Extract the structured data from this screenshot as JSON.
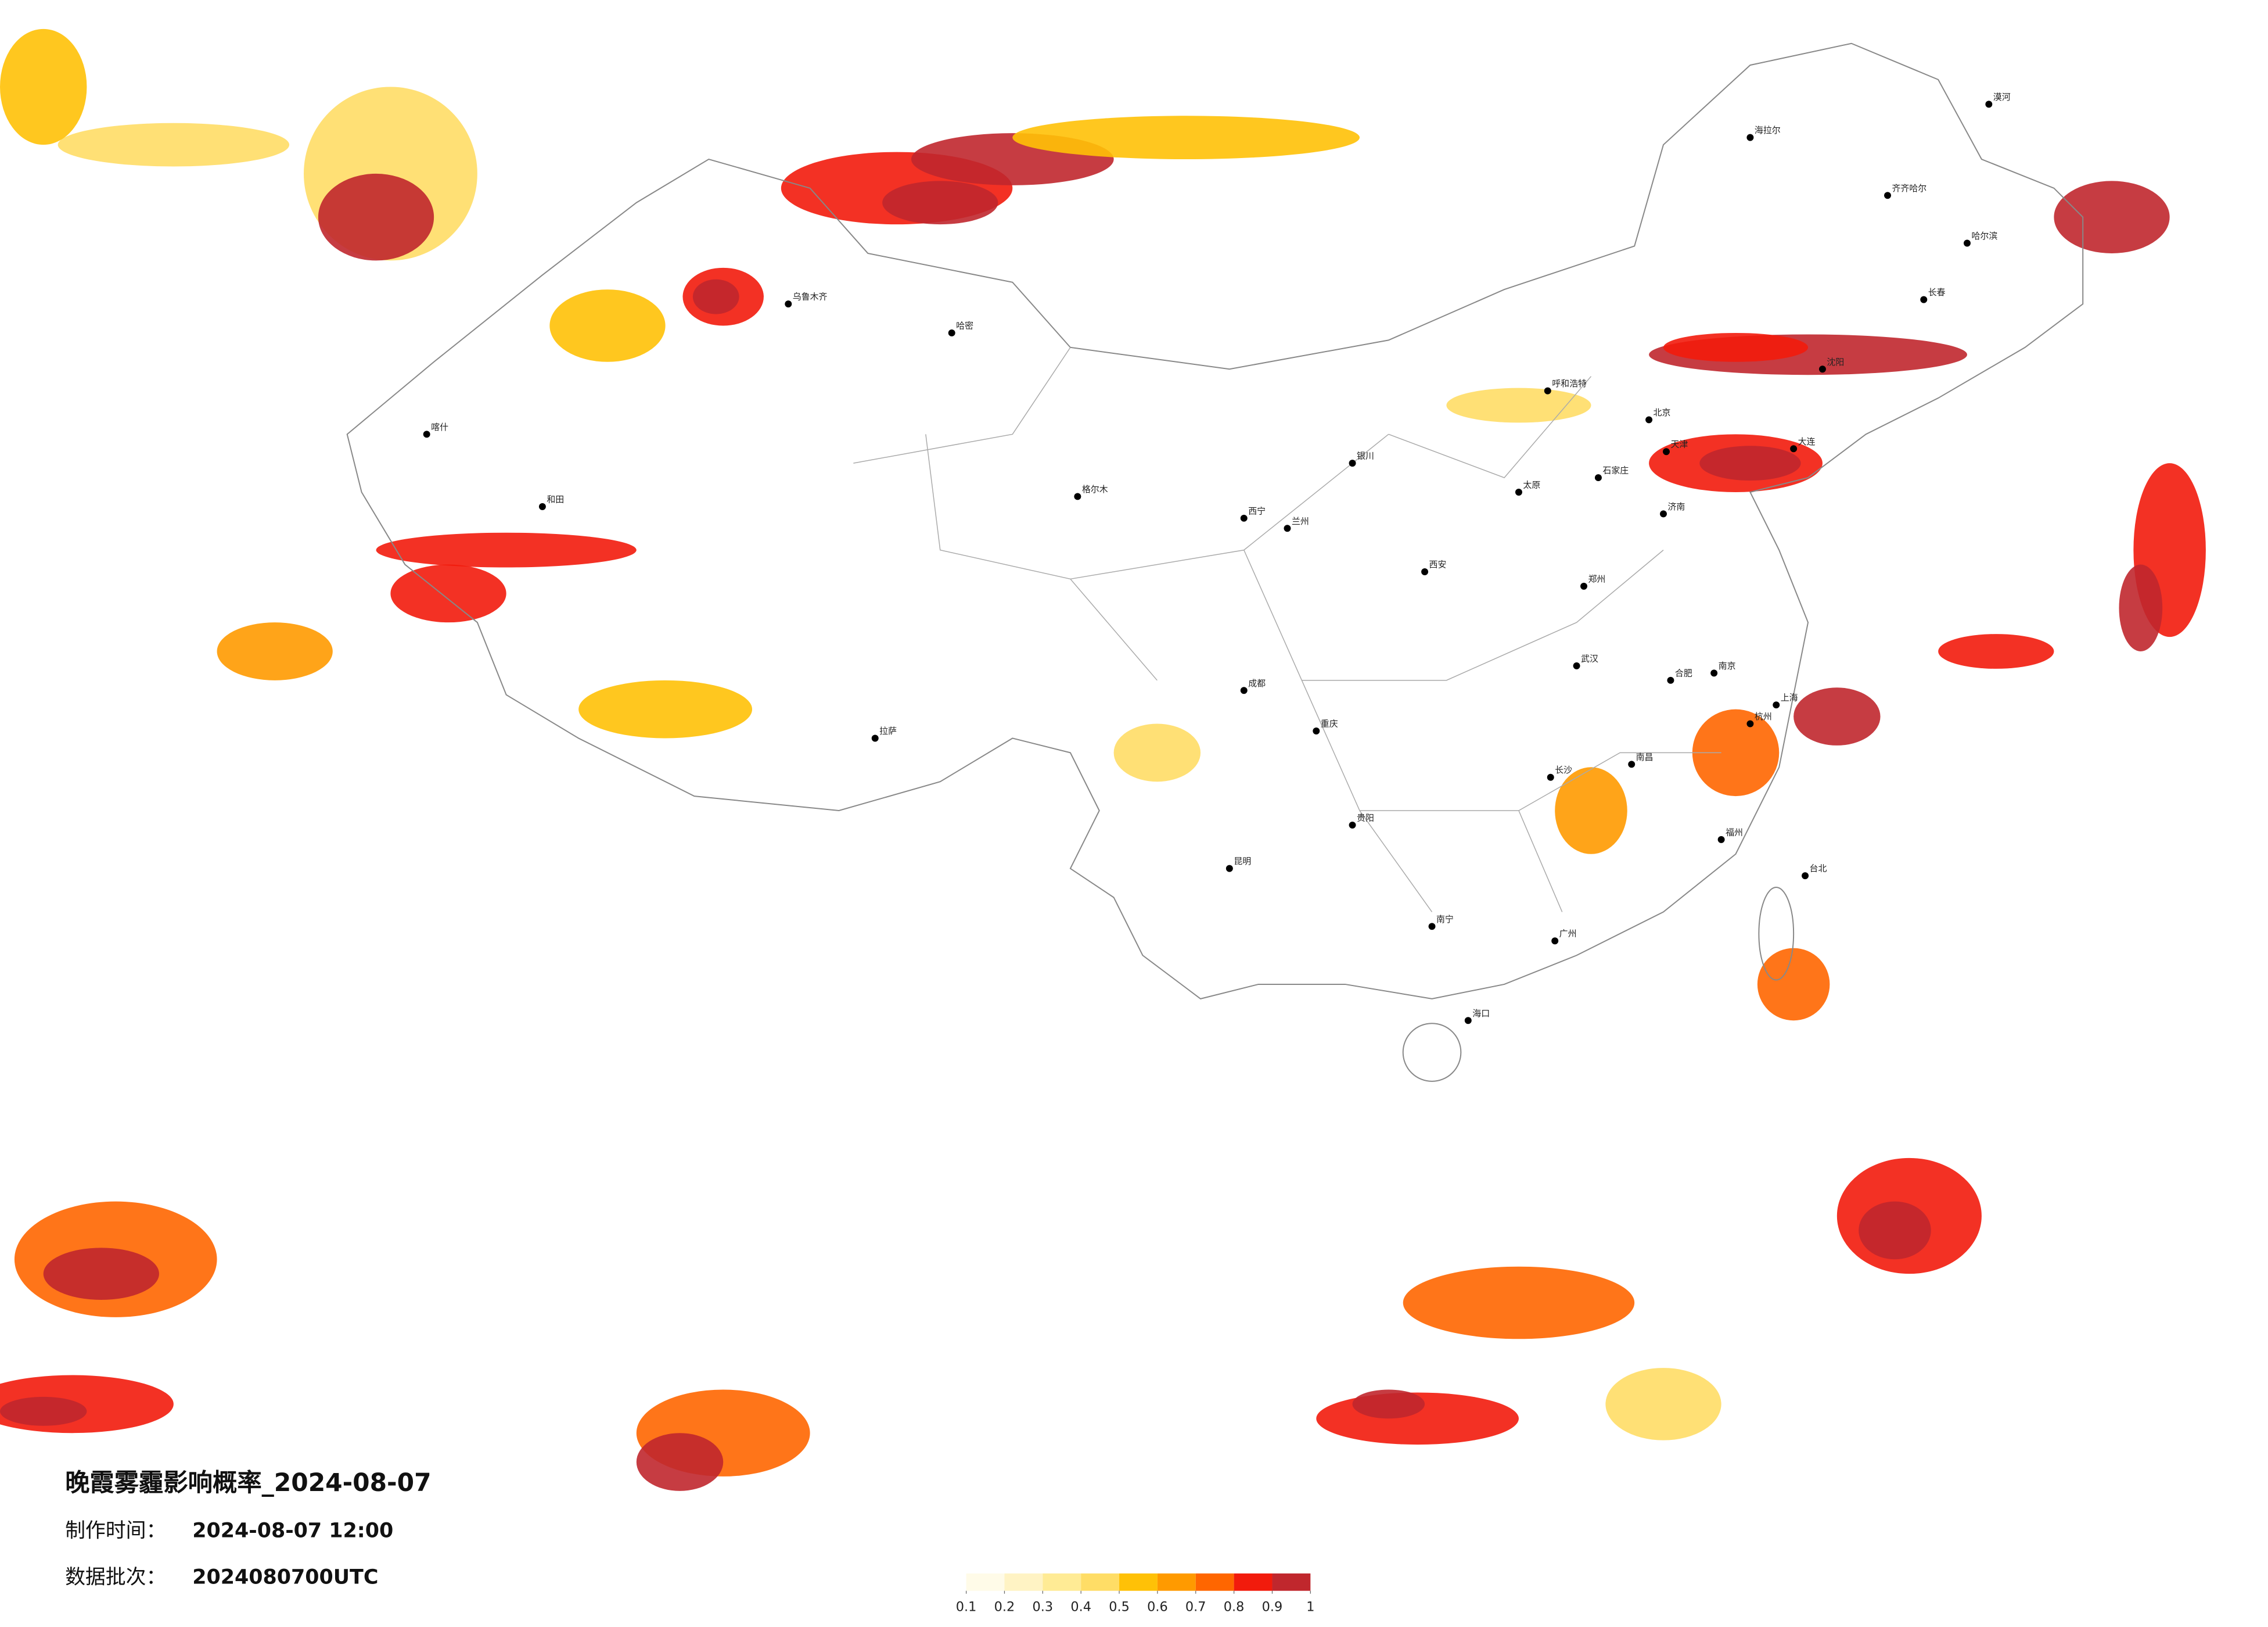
{
  "header": {
    "title": "晚霞雾霾影响概率_2024-08-07",
    "made_label": "制作时间：",
    "made_value": "2024-08-07 12:00",
    "batch_label": "数据批次：",
    "batch_value": "2024080700UTC"
  },
  "legend": {
    "ticks": [
      0.1,
      0.2,
      0.3,
      0.4,
      0.5,
      0.6,
      0.7,
      0.8,
      0.9,
      1
    ],
    "colors": [
      "#fffbe8",
      "#fff3c4",
      "#ffeb95",
      "#ffdd66",
      "#ffc107",
      "#ff9a00",
      "#ff6600",
      "#f21b0c",
      "#c0272d"
    ]
  },
  "places": [
    {
      "name": "北京"
    },
    {
      "name": "天津"
    },
    {
      "name": "上海"
    },
    {
      "name": "广州"
    },
    {
      "name": "武汉"
    },
    {
      "name": "成都"
    },
    {
      "name": "重庆"
    },
    {
      "name": "西安"
    },
    {
      "name": "郑州"
    },
    {
      "name": "长沙"
    },
    {
      "name": "南京"
    },
    {
      "name": "杭州"
    },
    {
      "name": "福州"
    },
    {
      "name": "南昌"
    },
    {
      "name": "合肥"
    },
    {
      "name": "济南"
    },
    {
      "name": "太原"
    },
    {
      "name": "石家庄"
    },
    {
      "name": "呼和浩特"
    },
    {
      "name": "沈阳"
    },
    {
      "name": "长春"
    },
    {
      "name": "哈尔滨"
    },
    {
      "name": "兰州"
    },
    {
      "name": "西宁"
    },
    {
      "name": "银川"
    },
    {
      "name": "乌鲁木齐"
    },
    {
      "name": "拉萨"
    },
    {
      "name": "昆明"
    },
    {
      "name": "贵阳"
    },
    {
      "name": "南宁"
    },
    {
      "name": "海口"
    },
    {
      "name": "台北"
    },
    {
      "name": "喀什"
    },
    {
      "name": "和田"
    },
    {
      "name": "漠河"
    },
    {
      "name": "海拉尔"
    },
    {
      "name": "齐齐哈尔"
    },
    {
      "name": "哈密"
    },
    {
      "name": "格尔木"
    },
    {
      "name": "大连"
    }
  ]
}
